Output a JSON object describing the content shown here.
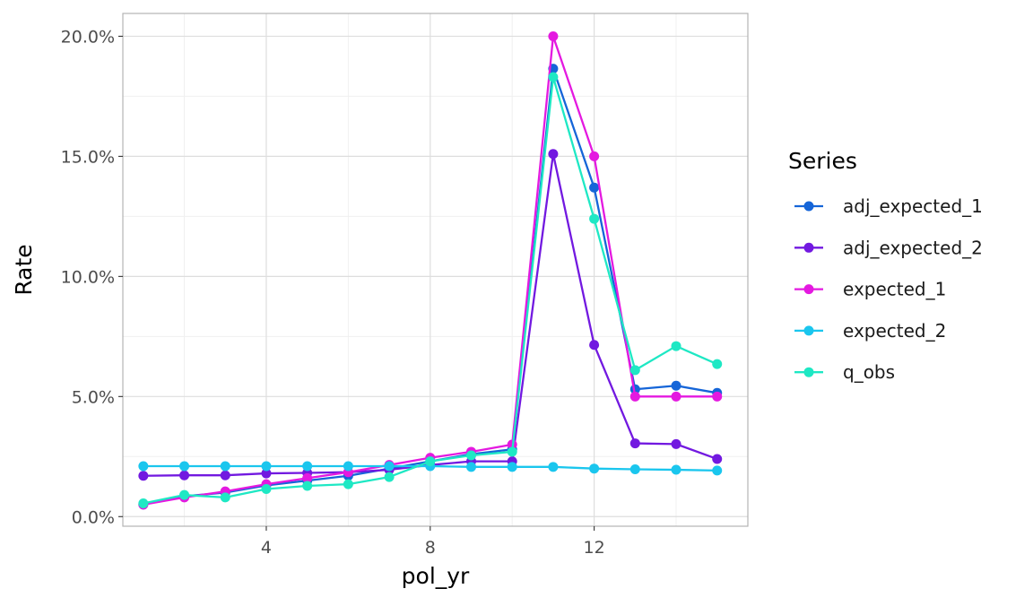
{
  "chart_data": {
    "type": "line",
    "title": "",
    "xlabel": "pol_yr",
    "ylabel": "Rate",
    "x": [
      1,
      2,
      3,
      4,
      5,
      6,
      7,
      8,
      9,
      10,
      11,
      12,
      13,
      14,
      15
    ],
    "xlim": [
      0.5,
      15.75
    ],
    "ylim": [
      -0.004,
      0.2095
    ],
    "x_ticks": [
      4,
      8,
      12
    ],
    "x_tick_labels": [
      "4",
      "8",
      "12"
    ],
    "y_ticks": [
      0,
      0.05,
      0.1,
      0.15,
      0.2
    ],
    "y_tick_labels": [
      "0.0%",
      "5.0%",
      "10.0%",
      "15.0%",
      "20.0%"
    ],
    "grid": true,
    "legend": {
      "title": "Series",
      "position": "right"
    },
    "series": [
      {
        "name": "adj_expected_1",
        "color": "#1565d8",
        "values": [
          0.005,
          0.0085,
          0.01,
          0.013,
          0.015,
          0.017,
          0.02,
          0.023,
          0.026,
          0.028,
          0.1865,
          0.137,
          0.053,
          0.0545,
          0.0515
        ]
      },
      {
        "name": "adj_expected_2",
        "color": "#7219e0",
        "values": [
          0.017,
          0.0172,
          0.0172,
          0.018,
          0.0182,
          0.0185,
          0.0195,
          0.0215,
          0.023,
          0.023,
          0.151,
          0.0715,
          0.0305,
          0.0302,
          0.024
        ]
      },
      {
        "name": "expected_1",
        "color": "#e419e0",
        "values": [
          0.005,
          0.008,
          0.0105,
          0.0135,
          0.016,
          0.0185,
          0.0215,
          0.0245,
          0.027,
          0.03,
          0.2,
          0.15,
          0.05,
          0.05,
          0.05
        ]
      },
      {
        "name": "expected_2",
        "color": "#1ac6ee",
        "values": [
          0.021,
          0.021,
          0.021,
          0.021,
          0.021,
          0.021,
          0.021,
          0.021,
          0.0207,
          0.0207,
          0.0207,
          0.02,
          0.0197,
          0.0195,
          0.0192
        ]
      },
      {
        "name": "q_obs",
        "color": "#1ee8c4",
        "values": [
          0.0055,
          0.009,
          0.008,
          0.0115,
          0.0128,
          0.0135,
          0.0165,
          0.023,
          0.0255,
          0.027,
          0.183,
          0.124,
          0.061,
          0.071,
          0.0635
        ]
      }
    ]
  }
}
